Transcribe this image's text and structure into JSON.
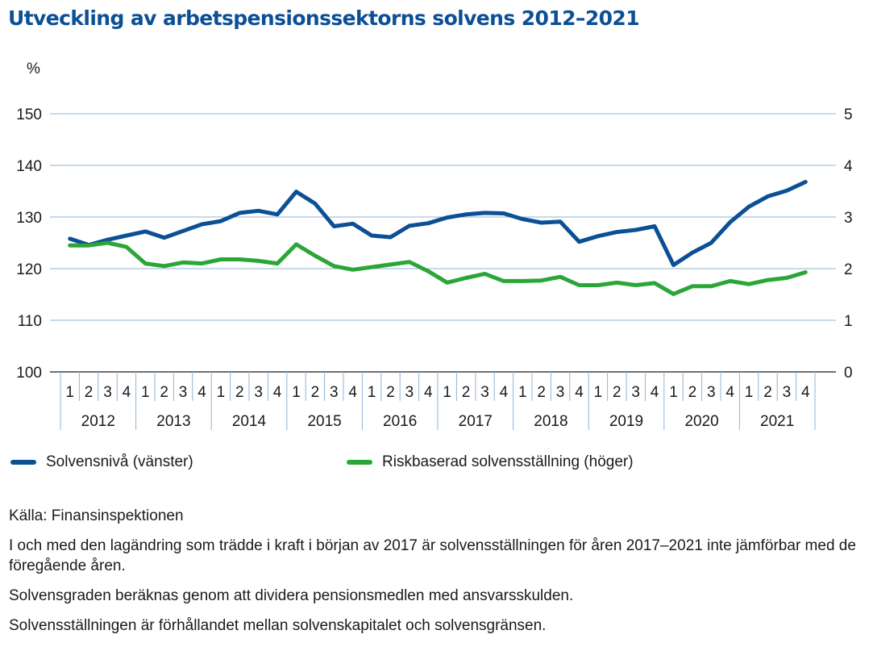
{
  "title": "Utveckling av arbetspensionssektorns solvens 2012–2021",
  "chart_data": {
    "type": "line",
    "title": "Utveckling av arbetspensionssektorns solvens 2012–2021",
    "y_unit_label": "%",
    "y_left": {
      "min": 100,
      "max": 150,
      "ticks": [
        100,
        110,
        120,
        130,
        140,
        150
      ]
    },
    "y_right": {
      "min": 0,
      "max": 5,
      "ticks": [
        0,
        1,
        2,
        3,
        4,
        5
      ]
    },
    "quarters": [
      "1",
      "2",
      "3",
      "4"
    ],
    "years": [
      "2012",
      "2013",
      "2014",
      "2015",
      "2016",
      "2017",
      "2018",
      "2019",
      "2020",
      "2021"
    ],
    "grid": true,
    "legend_position": "bottom",
    "series": [
      {
        "name": "Solvensnivå (vänster)",
        "axis": "left",
        "color": "#0b4f95",
        "values": [
          125.8,
          124.6,
          125.6,
          126.4,
          127.2,
          126.0,
          127.3,
          128.6,
          129.2,
          130.8,
          131.2,
          130.5,
          134.9,
          132.6,
          128.2,
          128.7,
          126.4,
          126.1,
          128.3,
          128.8,
          129.9,
          130.5,
          130.8,
          130.7,
          129.6,
          128.9,
          129.1,
          125.2,
          126.3,
          127.1,
          127.5,
          128.2,
          120.7,
          123.1,
          125.0,
          129.0,
          132.0,
          134.0,
          135.1,
          136.8
        ]
      },
      {
        "name": "Riskbaserad solvensställning (höger)",
        "axis": "right",
        "color": "#2aa637",
        "values": [
          2.45,
          2.45,
          2.5,
          2.42,
          2.1,
          2.05,
          2.12,
          2.1,
          2.18,
          2.18,
          2.15,
          2.1,
          2.47,
          2.25,
          2.05,
          1.98,
          2.03,
          2.08,
          2.13,
          1.95,
          1.73,
          1.82,
          1.9,
          1.76,
          1.76,
          1.77,
          1.84,
          1.68,
          1.68,
          1.73,
          1.68,
          1.72,
          1.51,
          1.66,
          1.66,
          1.76,
          1.7,
          1.78,
          1.82,
          1.93
        ]
      }
    ]
  },
  "notes": [
    "Källa: Finansinspektionen",
    "I och med den lagändring som trädde i kraft i början av 2017 är solvensställningen för åren 2017–2021 inte jämförbar med de föregående åren.",
    "Solvensgraden beräknas genom att dividera pensionsmedlen med ansvarsskulden.",
    "Solvensställningen är förhållandet mellan solvenskapitalet och solvensgränsen."
  ]
}
